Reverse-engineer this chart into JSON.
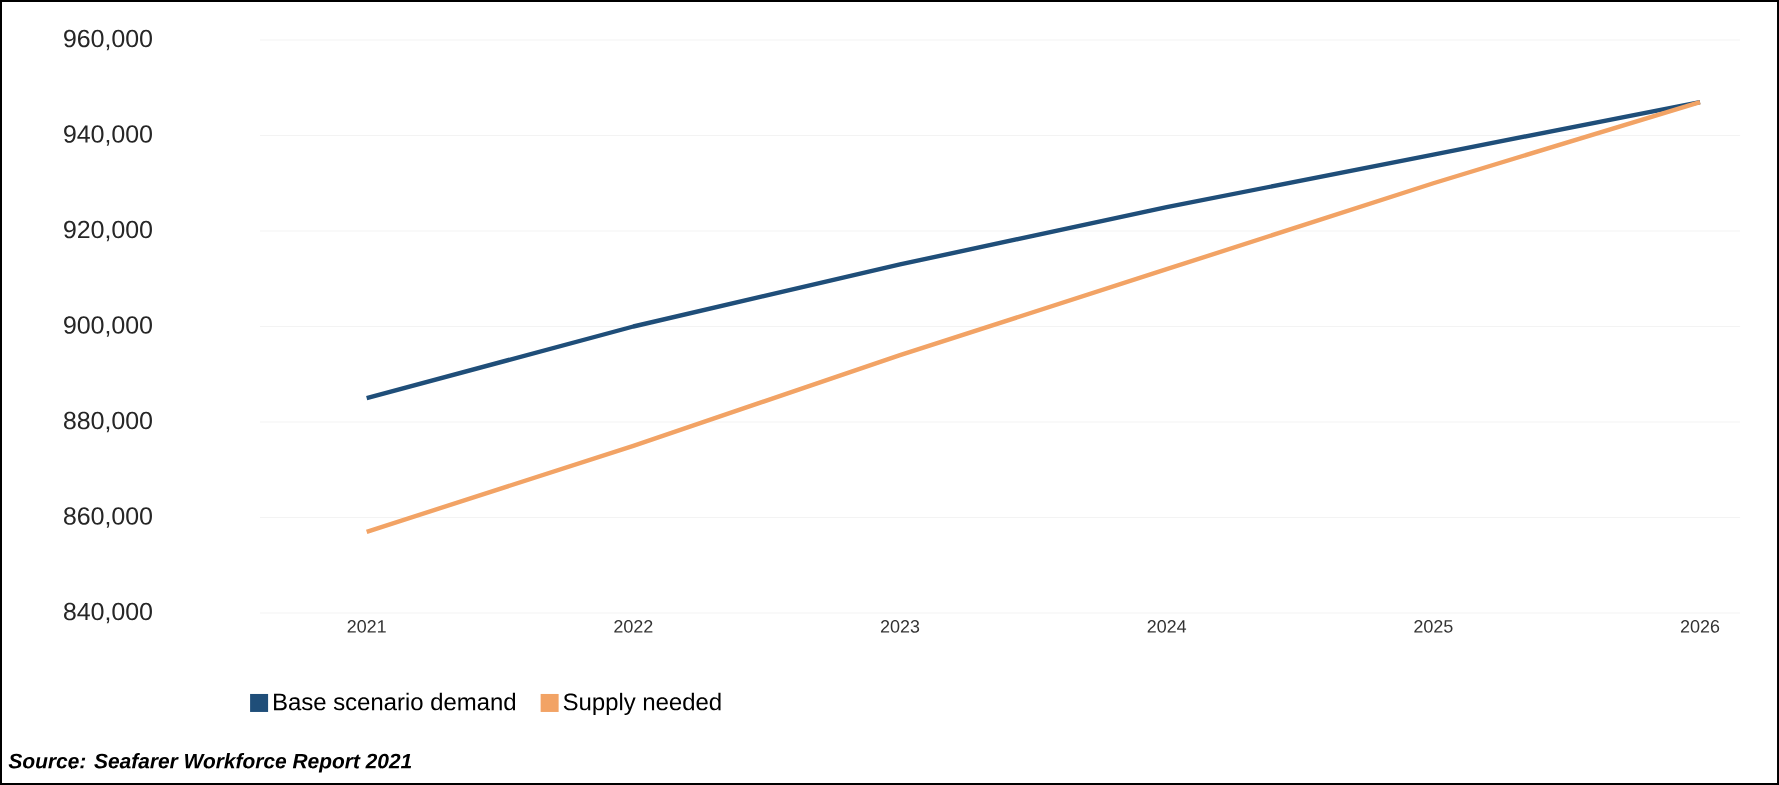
{
  "chart_data": {
    "type": "line",
    "categories": [
      "2021",
      "2022",
      "2023",
      "2024",
      "2025",
      "2026"
    ],
    "series": [
      {
        "name": "Base scenario demand",
        "color": "#1f4e79",
        "values": [
          885000,
          900000,
          913000,
          925000,
          936000,
          947000
        ]
      },
      {
        "name": "Supply needed",
        "color": "#f2a365",
        "values": [
          857000,
          875000,
          894000,
          912000,
          930000,
          947000
        ]
      }
    ],
    "ylim": [
      840000,
      960000
    ],
    "yticks": [
      {
        "value": 840000,
        "label": "840,000"
      },
      {
        "value": 860000,
        "label": "860,000"
      },
      {
        "value": 880000,
        "label": "880,000"
      },
      {
        "value": 900000,
        "label": "900,000"
      },
      {
        "value": 920000,
        "label": "920,000"
      },
      {
        "value": 940000,
        "label": "940,000"
      },
      {
        "value": 960000,
        "label": "960,000"
      }
    ],
    "grid": "y",
    "legend": "bottom",
    "marker": "none",
    "line_style": "solid",
    "annotations": [
      "Source: Seafarer Workforce Report 2021"
    ]
  }
}
